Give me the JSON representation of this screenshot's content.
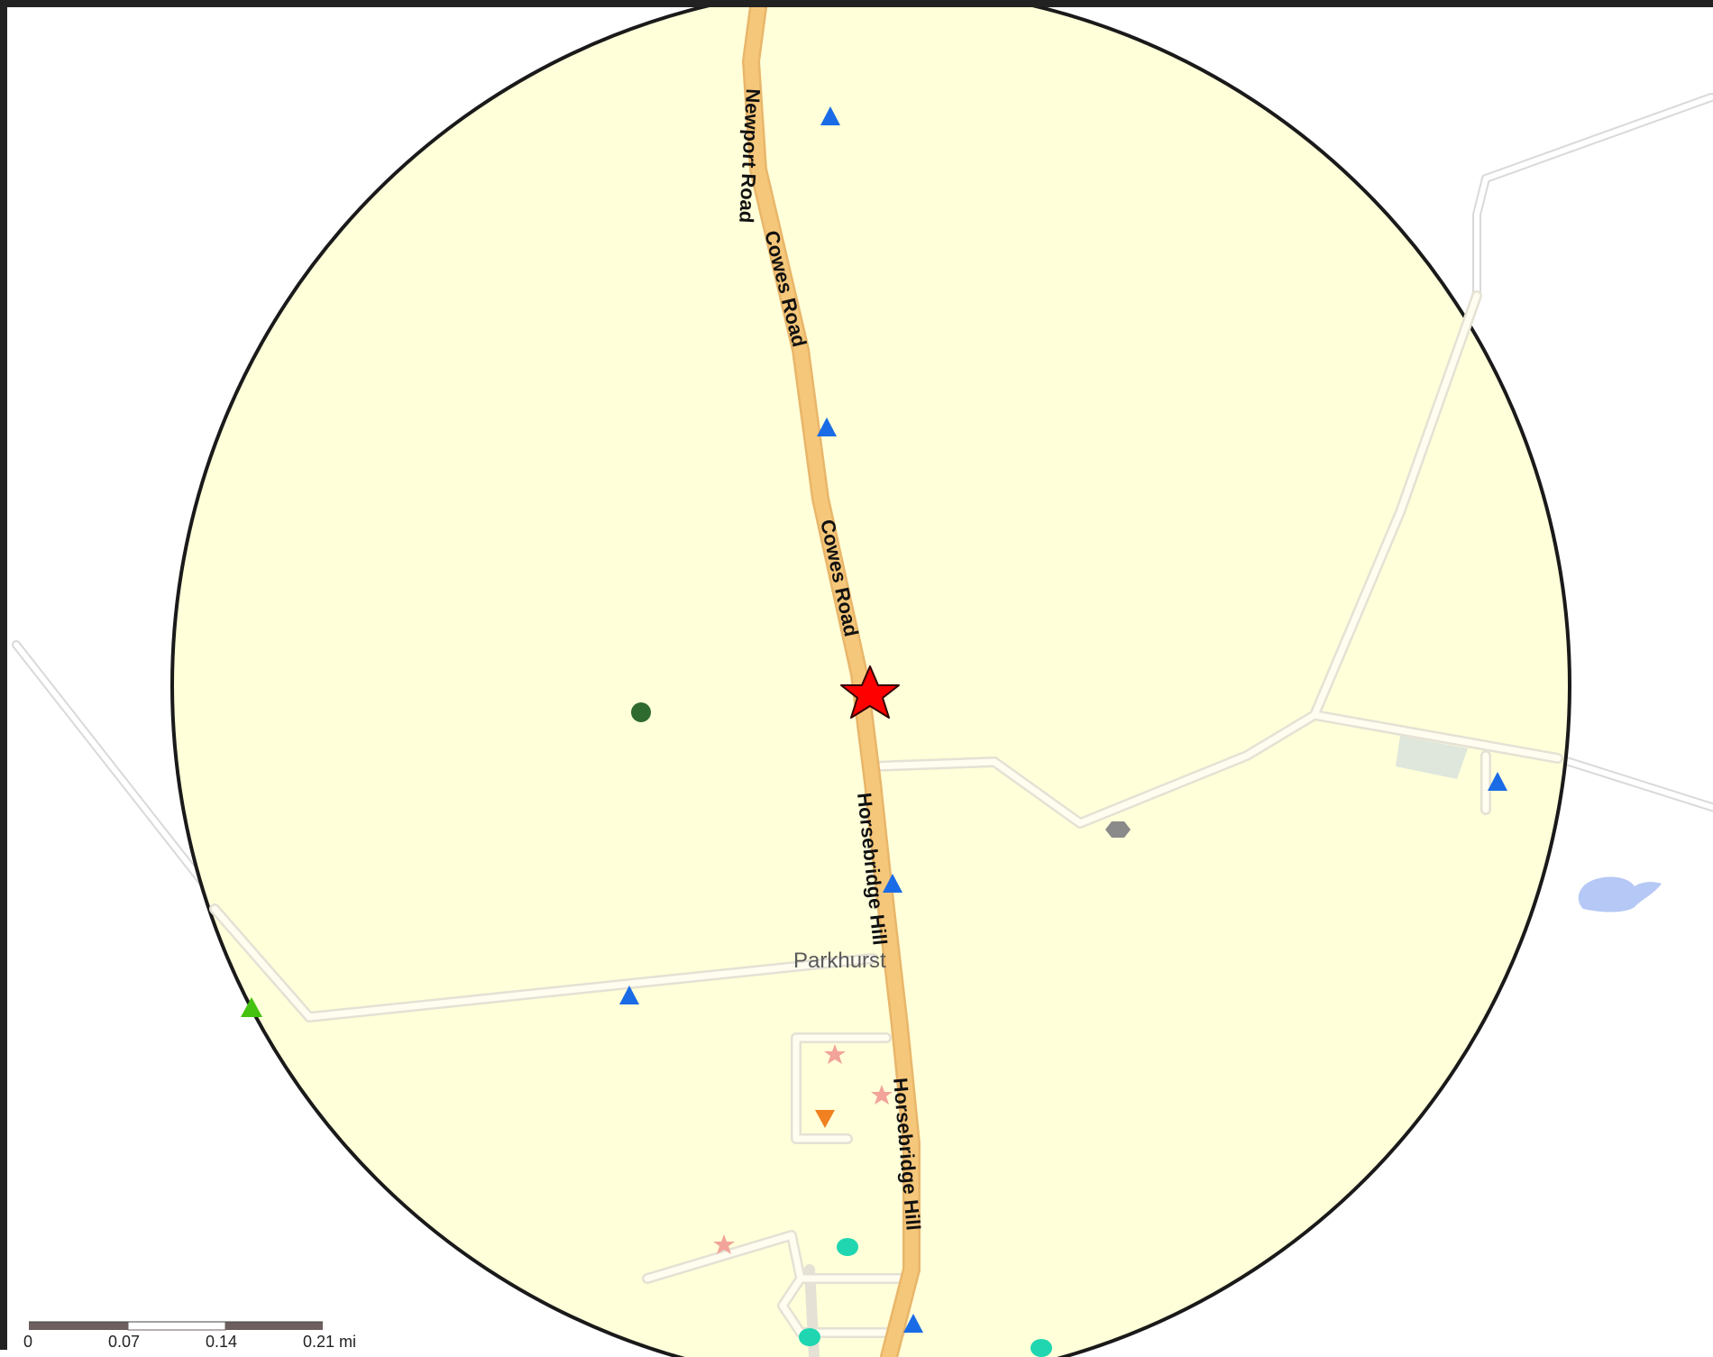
{
  "roads": {
    "main_road": [
      "Newport Road",
      "Cowes Road",
      "Cowes Road",
      "Horsebridge Hill",
      "Horsebridge Hill"
    ]
  },
  "places": {
    "village": "Parkhurst"
  },
  "scale_bar": {
    "ticks": [
      "0",
      "0.07",
      "0.14",
      "0.21 mi"
    ]
  },
  "colors": {
    "buffer_fill": "#ffffd9",
    "buffer_stroke": "#1a1a1a",
    "main_road": "#f5c77a",
    "minor_road": "#e5e1d4",
    "site_marker": "#ff0000",
    "blue_triangle": "#1a6be6",
    "green_triangle": "#44c20f",
    "dark_green_dot": "#2f6a2f",
    "teal_dot": "#1fd6b0",
    "pink_star": "#f2a39a",
    "orange_triangle": "#f08020",
    "grey_hexagon": "#8a8a8a",
    "water": "#b6c8f5",
    "building": "#dfe6dc"
  },
  "markers": {
    "site": "red-star",
    "features": [
      "blue-triangle",
      "green-triangle",
      "dark-green-circle",
      "teal-circle",
      "pink-star",
      "orange-down-triangle",
      "grey-hexagon"
    ]
  }
}
